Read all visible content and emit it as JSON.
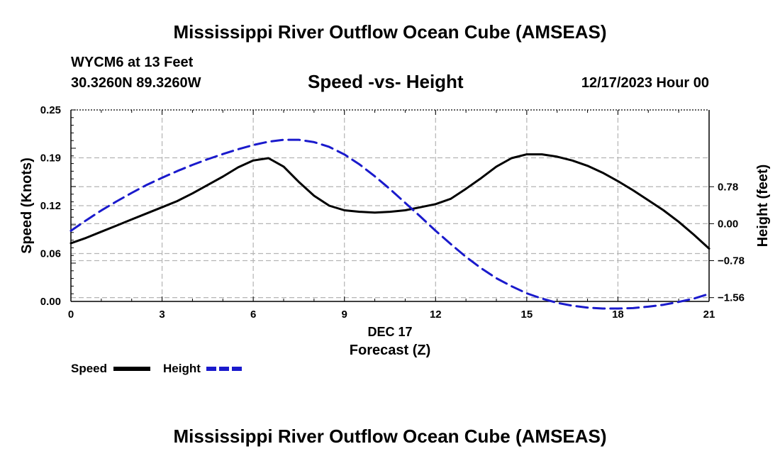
{
  "header": {
    "title": "Mississippi River Outflow Ocean Cube (AMSEAS)",
    "station": "WYCM6 at 13 Feet",
    "coords": "30.3260N  89.3260W",
    "subtitle": "Speed -vs- Height",
    "datetime": "12/17/2023 Hour 00"
  },
  "footer": {
    "title": "Mississippi River Outflow Ocean Cube (AMSEAS)"
  },
  "legend": {
    "speed_label": "Speed",
    "height_label": "Height"
  },
  "colors": {
    "speed": "#000000",
    "height": "#1a1acc",
    "grid": "#b4b4b4"
  },
  "chart_data": {
    "type": "line",
    "title": "Speed -vs- Height",
    "xlabel_date": "DEC 17",
    "xlabel": "Forecast (Z)",
    "ylabel": "Speed (Knots)",
    "y2label": "Height (feet)",
    "xlim": [
      0,
      21
    ],
    "ylim": [
      0,
      0.25
    ],
    "y2lim": [
      -1.64,
      2.4
    ],
    "x_ticks": [
      0,
      3,
      6,
      9,
      12,
      15,
      18,
      21
    ],
    "x_tick_labels": [
      "0",
      "3",
      "6",
      "9",
      "12",
      "15",
      "18",
      "21"
    ],
    "y_ticks": [
      0,
      0.0625,
      0.125,
      0.1875,
      0.25
    ],
    "y_tick_labels": [
      "0.00",
      "0.06",
      "0.12",
      "0.19",
      "0.25"
    ],
    "y2_ticks": [
      -1.56,
      -0.78,
      0,
      0.78
    ],
    "y2_tick_labels": [
      "−1.56",
      "−0.78",
      "0.00",
      "0.78"
    ],
    "series": [
      {
        "name": "Speed",
        "axis": "left",
        "style": "solid",
        "x": [
          0,
          0.5,
          1,
          1.5,
          2,
          2.5,
          3,
          3.5,
          4,
          4.5,
          5,
          5.5,
          6,
          6.5,
          7,
          7.5,
          8,
          8.5,
          9,
          9.5,
          10,
          10.5,
          11,
          11.5,
          12,
          12.5,
          13,
          13.5,
          14,
          14.5,
          15,
          15.5,
          16,
          16.5,
          17,
          17.5,
          18,
          18.5,
          19,
          19.5,
          20,
          20.5,
          21
        ],
        "values": [
          0.076,
          0.083,
          0.091,
          0.099,
          0.107,
          0.115,
          0.123,
          0.131,
          0.141,
          0.152,
          0.163,
          0.175,
          0.184,
          0.187,
          0.176,
          0.156,
          0.138,
          0.125,
          0.119,
          0.117,
          0.116,
          0.117,
          0.119,
          0.123,
          0.127,
          0.134,
          0.147,
          0.161,
          0.176,
          0.187,
          0.192,
          0.192,
          0.189,
          0.184,
          0.177,
          0.168,
          0.157,
          0.145,
          0.132,
          0.119,
          0.104,
          0.087,
          0.069
        ]
      },
      {
        "name": "Height",
        "axis": "right",
        "style": "dashed",
        "x": [
          0,
          0.5,
          1,
          1.5,
          2,
          2.5,
          3,
          3.5,
          4,
          4.5,
          5,
          5.5,
          6,
          6.5,
          7,
          7.5,
          8,
          8.5,
          9,
          9.5,
          10,
          10.5,
          11,
          11.5,
          12,
          12.5,
          13,
          13.5,
          14,
          14.5,
          15,
          15.5,
          16,
          16.5,
          17,
          17.5,
          18,
          18.5,
          19,
          19.5,
          20,
          20.5,
          21
        ],
        "values": [
          -0.15,
          0.07,
          0.28,
          0.47,
          0.65,
          0.82,
          0.97,
          1.11,
          1.24,
          1.36,
          1.47,
          1.57,
          1.66,
          1.73,
          1.77,
          1.77,
          1.72,
          1.62,
          1.46,
          1.25,
          1.0,
          0.73,
          0.44,
          0.15,
          -0.15,
          -0.43,
          -0.7,
          -0.94,
          -1.15,
          -1.32,
          -1.47,
          -1.58,
          -1.67,
          -1.73,
          -1.77,
          -1.79,
          -1.79,
          -1.78,
          -1.75,
          -1.71,
          -1.65,
          -1.58,
          -1.48
        ]
      }
    ]
  }
}
